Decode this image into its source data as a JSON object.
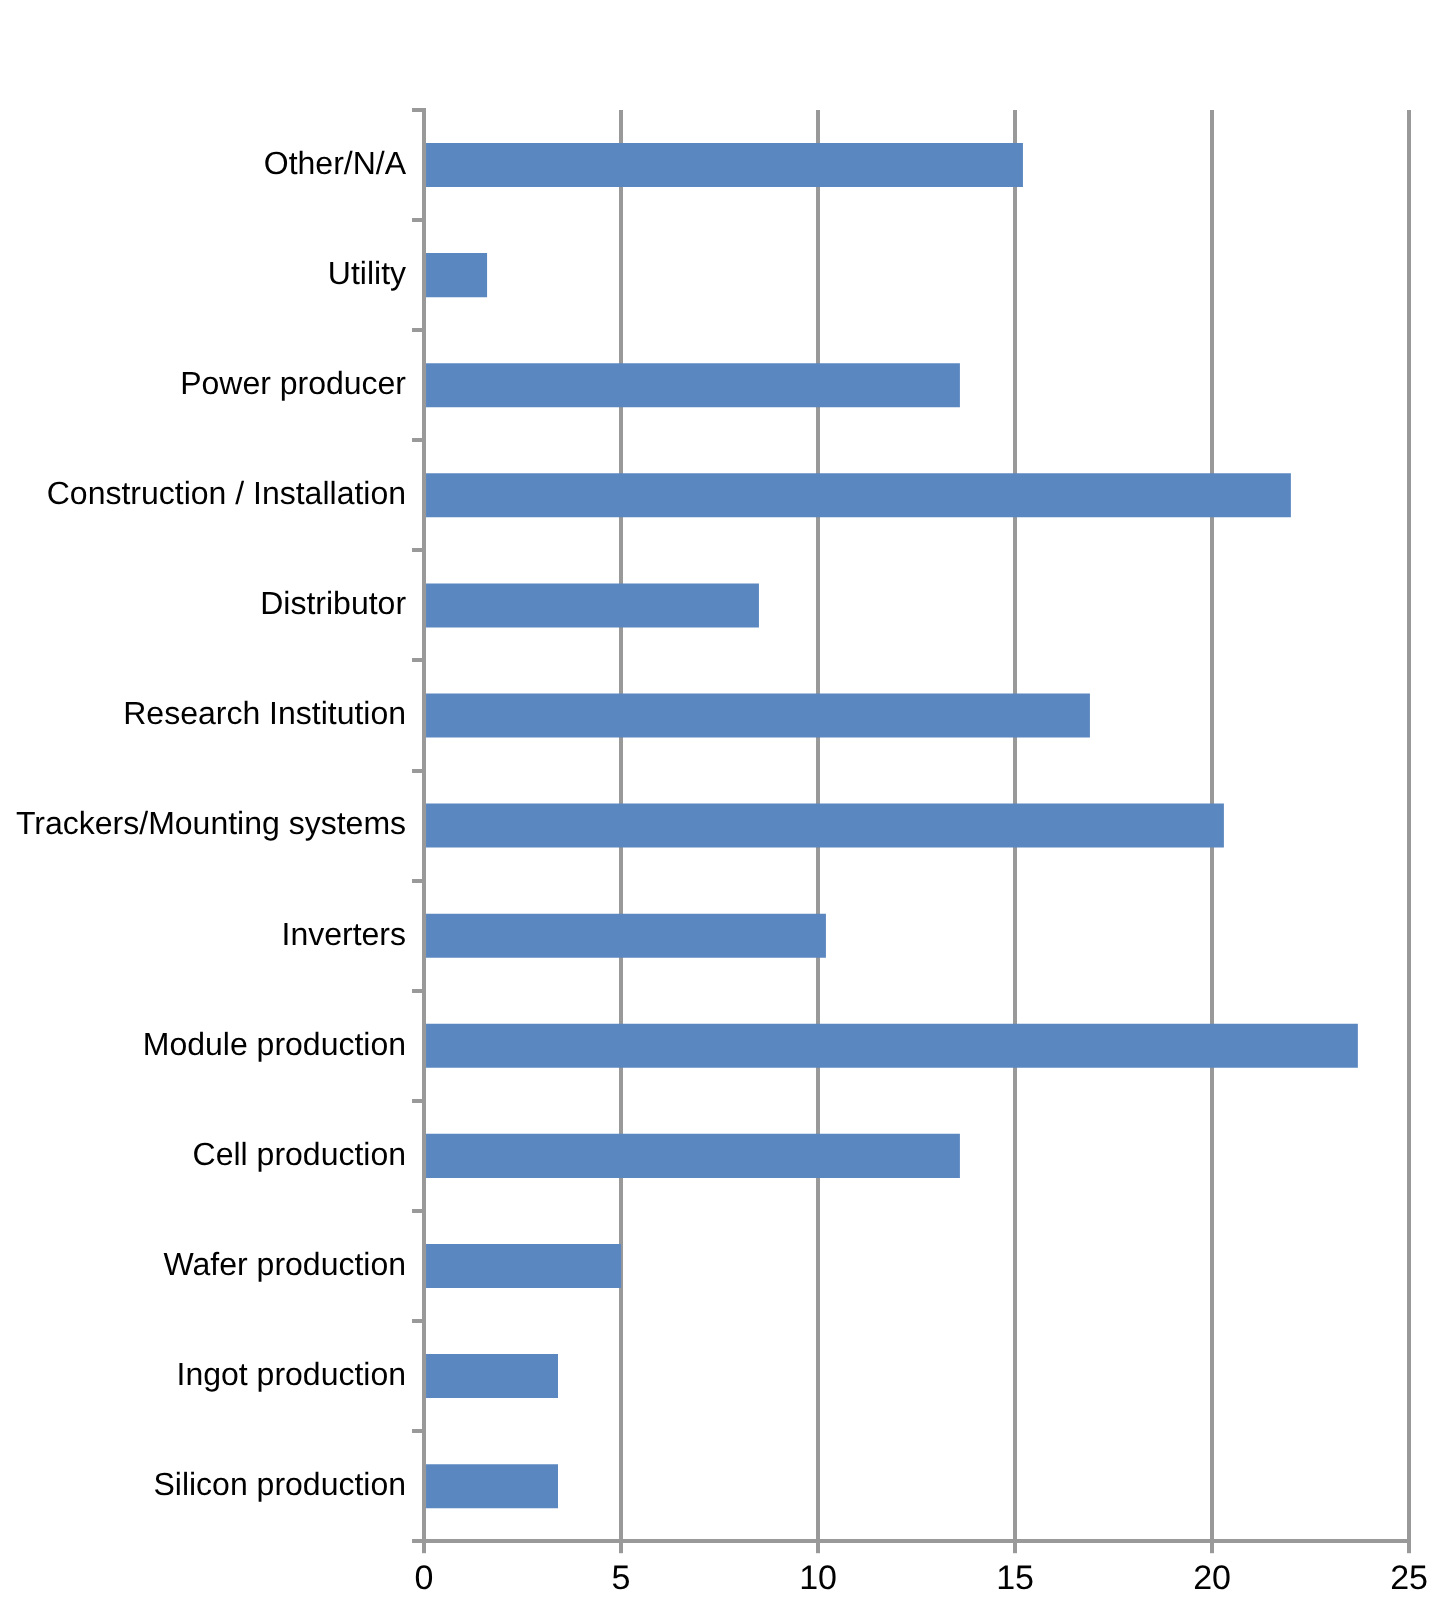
{
  "chart_data": {
    "type": "bar",
    "orientation": "horizontal",
    "categories": [
      "Other/N/A",
      "Utility",
      "Power producer",
      "Construction / Installation",
      "Distributor",
      "Research Institution",
      "Trackers/Mounting systems",
      "Inverters",
      "Module production",
      "Cell production",
      "Wafer production",
      "Ingot production",
      "Silicon production"
    ],
    "values": [
      15.2,
      1.6,
      13.6,
      22.0,
      8.5,
      16.9,
      20.3,
      10.2,
      23.7,
      13.6,
      5.0,
      3.4,
      3.4
    ],
    "color": "#5b87c0",
    "xlim": [
      0,
      25
    ],
    "xticks": [
      0,
      5,
      10,
      15,
      20,
      25
    ],
    "grid": "x",
    "legend": false
  }
}
